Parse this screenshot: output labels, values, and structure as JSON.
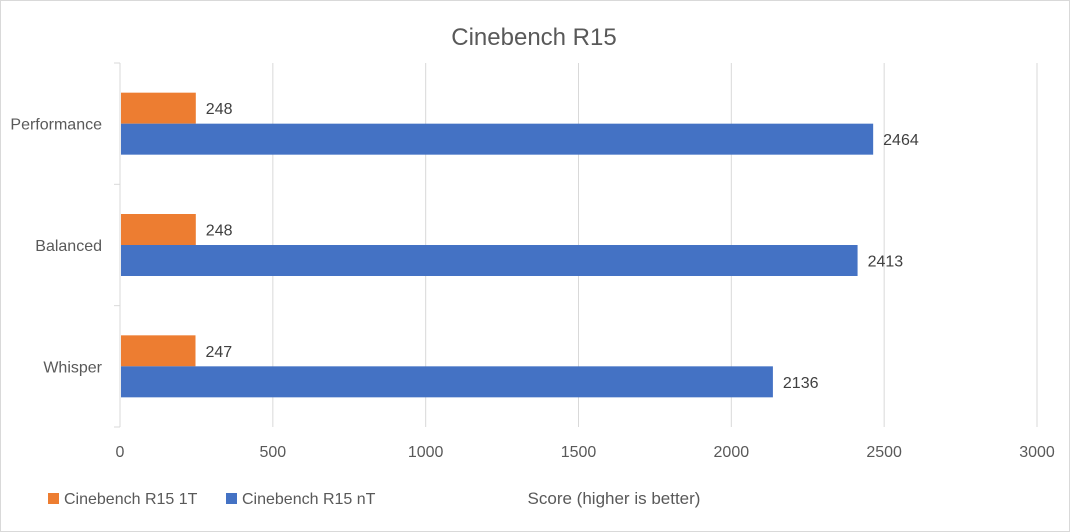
{
  "chart_data": {
    "type": "bar",
    "orientation": "horizontal",
    "title": "Cinebench R15",
    "xlabel": "Score (higher is better)",
    "ylabel": "",
    "categories": [
      "Performance",
      "Balanced",
      "Whisper"
    ],
    "series": [
      {
        "name": "Cinebench R15 1T",
        "color": "#ED7D31",
        "values": [
          248,
          248,
          247
        ]
      },
      {
        "name": "Cinebench R15 nT",
        "color": "#4472C4",
        "values": [
          2464,
          2413,
          2136
        ]
      }
    ],
    "xlim": [
      0,
      3000
    ],
    "xticks": [
      "0",
      "500",
      "1000",
      "1500",
      "2000",
      "2500",
      "3000"
    ],
    "grid": true,
    "legend_position": "bottom-left"
  }
}
